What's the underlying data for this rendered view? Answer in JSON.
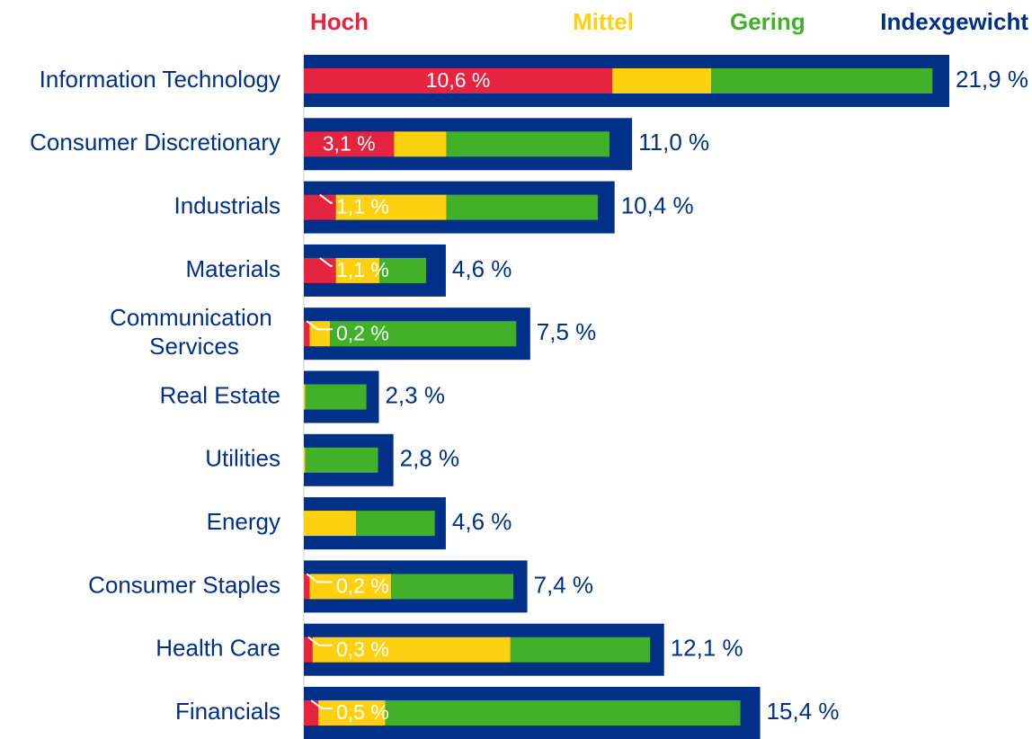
{
  "chart_data": {
    "type": "bar",
    "orientation": "horizontal",
    "categories": [
      "Information Technology",
      "Consumer Discretionary",
      "Industrials",
      "Materials",
      "Communication Services",
      "Real Estate",
      "Utilities",
      "Energy",
      "Consumer Staples",
      "Health Care",
      "Financials"
    ],
    "series": [
      {
        "name": "Hoch",
        "color": "#e5243f",
        "values": [
          10.6,
          3.1,
          1.1,
          1.1,
          0.2,
          0,
          0,
          0,
          0.2,
          0.3,
          0.5
        ],
        "value_labels": [
          "10,6 %",
          "3,1 %",
          "1,1 %",
          "1,1 %",
          "0,2 %",
          null,
          null,
          null,
          "0,2 %",
          "0,3 %",
          "0,5 %"
        ]
      },
      {
        "name": "Mittel",
        "color": "#fdd10f",
        "values": [
          3.4,
          1.8,
          3.8,
          1.5,
          0.7,
          0.05,
          0.05,
          1.8,
          2.8,
          6.8,
          2.3
        ]
      },
      {
        "name": "Gering",
        "color": "#43b02a",
        "values": [
          7.6,
          5.6,
          5.2,
          1.6,
          6.4,
          2.1,
          2.5,
          2.7,
          4.2,
          4.8,
          12.2
        ]
      },
      {
        "name": "Indexgewicht",
        "color": "#003087",
        "values": [
          21.9,
          11.0,
          10.4,
          4.6,
          7.5,
          2.3,
          2.8,
          4.6,
          7.4,
          12.1,
          15.4
        ],
        "value_labels": [
          "21,9 %",
          "11,0 %",
          "10,4 %",
          "4,6 %",
          "7,5 %",
          "2,3 %",
          "2,8 %",
          "4,6 %",
          "7,4 %",
          "12,1 %",
          "15,4 %"
        ]
      }
    ],
    "legend": "top"
  }
}
